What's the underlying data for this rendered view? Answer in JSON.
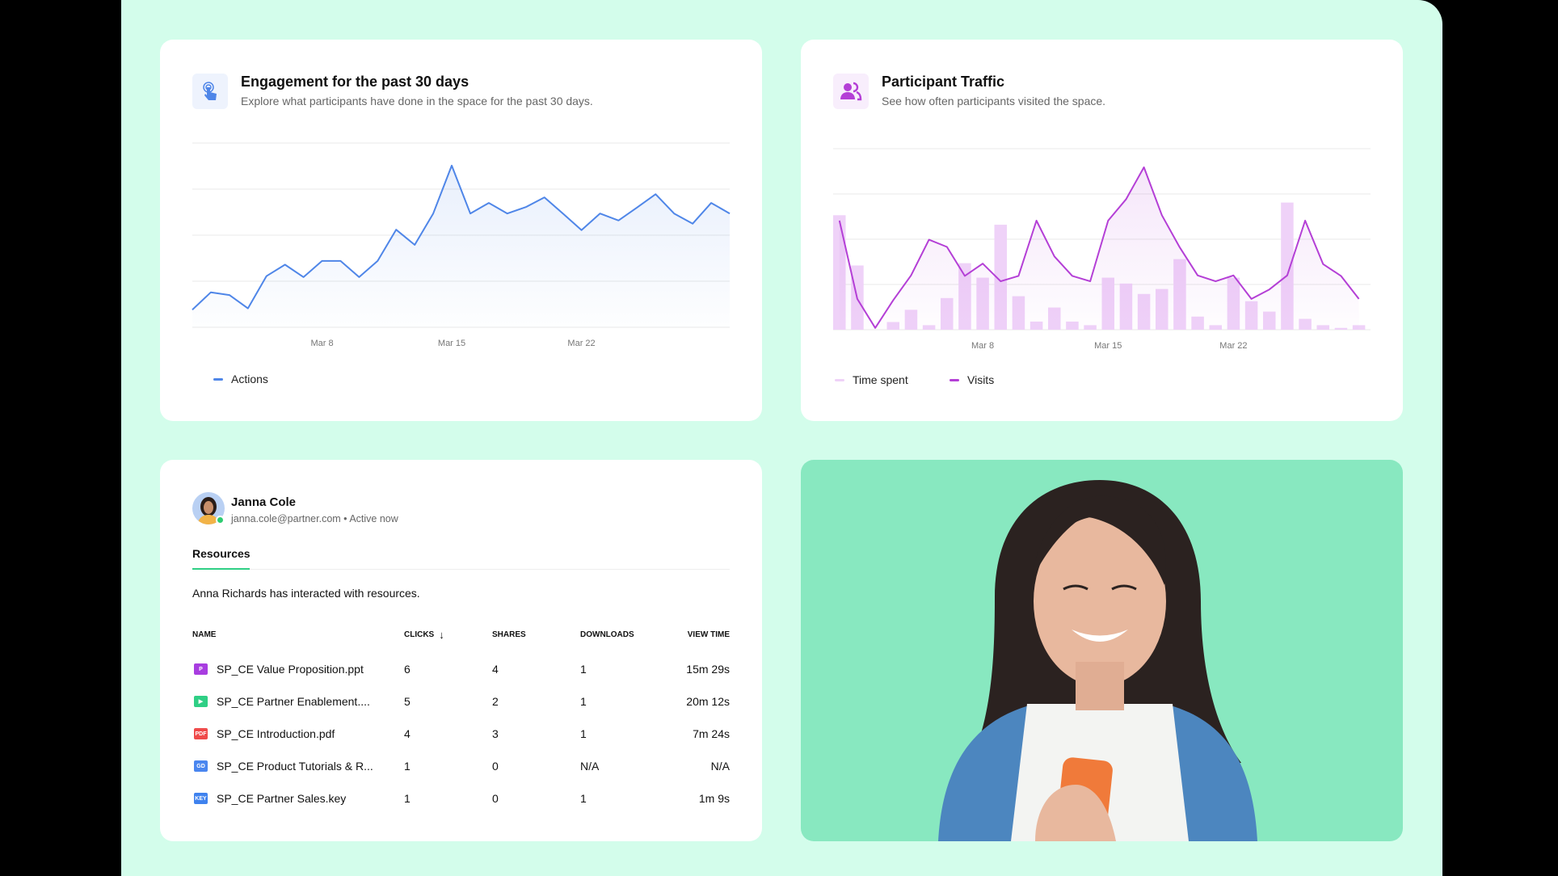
{
  "engagement": {
    "title": "Engagement for the past 30 days",
    "subtitle": "Explore what participants have done in the space for the past 30 days.",
    "icon": "tap-pointer-icon",
    "accent": "#4f86e8"
  },
  "traffic": {
    "title": "Participant Traffic",
    "subtitle": "See how often participants visited the space.",
    "icon": "users-icon",
    "accent": "#b43fd6"
  },
  "chart_data": [
    {
      "type": "area",
      "title": "Engagement for the past 30 days",
      "x_ticks": [
        "Mar 8",
        "Mar 15",
        "Mar 22"
      ],
      "tick_index": [
        7,
        14,
        21
      ],
      "ylim": [
        0,
        4
      ],
      "grid": true,
      "legend_placement": "bottom-left",
      "series": [
        {
          "name": "Actions",
          "color": "#4f86e8",
          "values": [
            0.38,
            0.76,
            0.7,
            0.41,
            1.11,
            1.36,
            1.09,
            1.44,
            1.44,
            1.09,
            1.44,
            2.12,
            1.79,
            2.47,
            3.51,
            2.47,
            2.7,
            2.47,
            2.61,
            2.82,
            2.47,
            2.11,
            2.47,
            2.32,
            2.6,
            2.89,
            2.47,
            2.25,
            2.7,
            2.47
          ]
        }
      ]
    },
    {
      "type": "bar+line",
      "title": "Participant Traffic",
      "x_ticks": [
        "Mar 8",
        "Mar 15",
        "Mar 22"
      ],
      "tick_index": [
        8,
        15,
        22
      ],
      "ylim": [
        0,
        4
      ],
      "grid": true,
      "legend_placement": "bottom-left",
      "series": [
        {
          "name": "Time spent",
          "kind": "bar",
          "color": "#efd2f8",
          "values": [
            2.53,
            1.42,
            0,
            0.17,
            0.44,
            0.1,
            0.7,
            1.47,
            1.15,
            2.32,
            0.74,
            0.18,
            0.49,
            0.18,
            0.1,
            1.15,
            1.02,
            0.79,
            0.9,
            1.56,
            0.29,
            0.1,
            1.15,
            0.63,
            0.4,
            2.81,
            0.24,
            0.1,
            0.04,
            0.1
          ]
        },
        {
          "name": "Visits",
          "kind": "line",
          "color": "#b43fd6",
          "values": [
            2.41,
            0.68,
            0.04,
            0.65,
            1.2,
            1.99,
            1.83,
            1.19,
            1.46,
            1.07,
            1.19,
            2.41,
            1.62,
            1.19,
            1.07,
            2.41,
            2.88,
            3.59,
            2.53,
            1.82,
            1.2,
            1.07,
            1.2,
            0.68,
            0.89,
            1.2,
            2.41,
            1.45,
            1.19,
            0.68
          ]
        }
      ]
    }
  ],
  "profile": {
    "name": "Janna Cole",
    "meta": "janna.cole@partner.com • Active now",
    "status_color": "#2ecc71"
  },
  "resources": {
    "tab": "Resources",
    "description": "Anna Richards has interacted with resources.",
    "columns": [
      "NAME",
      "CLICKS",
      "SHARES",
      "DOWNLOADS",
      "VIEW TIME"
    ],
    "sort_icon": "arrow-down-icon",
    "rows": [
      {
        "icon": "P",
        "icon_color": "#a83de0",
        "name": "SP_CE Value Proposition.ppt",
        "clicks": "6",
        "shares": "4",
        "downloads": "1",
        "view_time": "15m 29s"
      },
      {
        "icon": "▶",
        "icon_color": "#2fcf85",
        "name": "SP_CE Partner Enablement....",
        "clicks": "5",
        "shares": "2",
        "downloads": "1",
        "view_time": "20m 12s"
      },
      {
        "icon": "PDF",
        "icon_color": "#ef4a4a",
        "name": "SP_CE Introduction.pdf",
        "clicks": "4",
        "shares": "3",
        "downloads": "1",
        "view_time": "7m 24s"
      },
      {
        "icon": "GD",
        "icon_color": "#4a86ef",
        "name": "SP_CE Product Tutorials & R...",
        "clicks": "1",
        "shares": "0",
        "downloads": "N/A",
        "view_time": "N/A"
      },
      {
        "icon": "KEY",
        "icon_color": "#3f82ee",
        "name": "SP_CE Partner Sales.key",
        "clicks": "1",
        "shares": "0",
        "downloads": "1",
        "view_time": "1m 9s"
      }
    ]
  },
  "photo": {
    "bg": "#88e8c0"
  }
}
